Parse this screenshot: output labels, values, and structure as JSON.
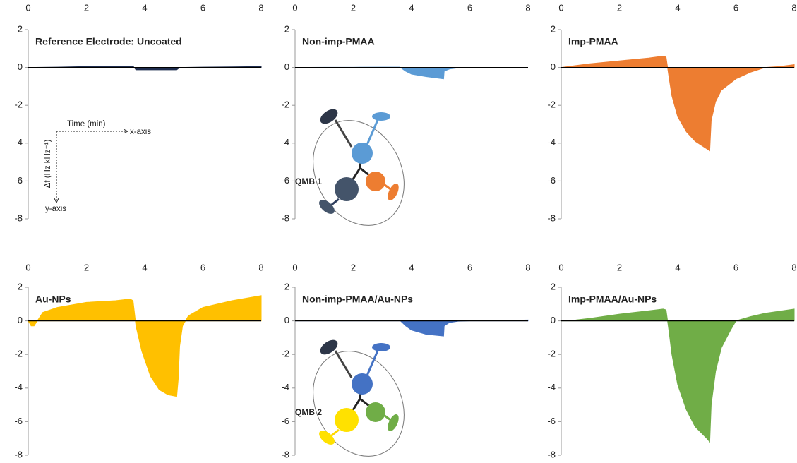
{
  "chart_data": [
    {
      "type": "area",
      "title": "Reference Electrode: Uncoated",
      "color": "#1f2d4e",
      "x": [
        0,
        1,
        2,
        3,
        3.6,
        3.7,
        5.1,
        5.2,
        6,
        7,
        8
      ],
      "values": [
        0,
        0.02,
        0.05,
        0.07,
        0.07,
        -0.12,
        -0.12,
        0,
        0.02,
        0.03,
        0.05
      ],
      "xlim": [
        0,
        8
      ],
      "xticks": [
        0,
        2,
        4,
        6,
        8
      ],
      "ylim": [
        -8,
        2
      ],
      "yticks": [
        2,
        0,
        -2,
        -4,
        -6,
        -8
      ],
      "annotations": [
        "Time (min)",
        "x-axis",
        "Δf (Hz kHz⁻¹)",
        "y-axis"
      ]
    },
    {
      "type": "area",
      "title": "Non-imp-PMAA",
      "color": "#5b9bd5",
      "x": [
        0,
        1,
        2,
        3,
        3.6,
        3.8,
        4,
        4.5,
        5.1,
        5.12,
        5.3,
        5.6,
        6,
        7,
        8
      ],
      "values": [
        0,
        0.01,
        0.01,
        0.02,
        0.02,
        -0.2,
        -0.35,
        -0.48,
        -0.6,
        -0.2,
        -0.08,
        -0.02,
        0,
        0,
        0
      ],
      "xlim": [
        0,
        8
      ],
      "xticks": [
        0,
        2,
        4,
        6,
        8
      ],
      "ylim": [
        -8,
        2
      ],
      "yticks": [
        2,
        0,
        -2,
        -4,
        -6,
        -8
      ],
      "annotations": [
        "QMB 1"
      ]
    },
    {
      "type": "area",
      "title": "Imp-PMAA",
      "color": "#ed7d31",
      "x": [
        0,
        0.5,
        1,
        2,
        3,
        3.5,
        3.6,
        3.7,
        3.8,
        4,
        4.3,
        4.6,
        5,
        5.1,
        5.15,
        5.3,
        5.5,
        6,
        6.5,
        7,
        7.5,
        8
      ],
      "values": [
        0,
        0.1,
        0.2,
        0.35,
        0.5,
        0.6,
        0.55,
        -0.5,
        -1.5,
        -2.6,
        -3.4,
        -3.9,
        -4.3,
        -4.4,
        -2.8,
        -1.8,
        -1.2,
        -0.6,
        -0.25,
        0,
        0.05,
        0.15
      ],
      "xlim": [
        0,
        8
      ],
      "xticks": [
        0,
        2,
        4,
        6,
        8
      ],
      "ylim": [
        -8,
        2
      ],
      "yticks": [
        2,
        0,
        -2,
        -4,
        -6,
        -8
      ]
    },
    {
      "type": "area",
      "title": "Au-NPs",
      "color": "#ffc000",
      "x": [
        0,
        0.1,
        0.2,
        0.5,
        1,
        2,
        3,
        3.5,
        3.6,
        3.7,
        3.9,
        4.2,
        4.5,
        4.8,
        5.1,
        5.15,
        5.2,
        5.3,
        5.5,
        6,
        7,
        8
      ],
      "values": [
        0,
        -0.3,
        -0.3,
        0.5,
        0.8,
        1.1,
        1.2,
        1.3,
        1.2,
        -0.3,
        -1.8,
        -3.3,
        -4.1,
        -4.4,
        -4.5,
        -3.5,
        -1.5,
        -0.3,
        0.3,
        0.8,
        1.2,
        1.5
      ],
      "xlim": [
        0,
        8
      ],
      "xticks": [
        0,
        2,
        4,
        6,
        8
      ],
      "ylim": [
        -8,
        2
      ],
      "yticks": [
        2,
        0,
        -2,
        -4,
        -6,
        -8
      ]
    },
    {
      "type": "area",
      "title": "Non-imp-PMAA/Au-NPs",
      "color": "#4472c4",
      "x": [
        0,
        2,
        3.6,
        3.8,
        4,
        4.5,
        5.1,
        5.12,
        5.3,
        5.6,
        6,
        7,
        8
      ],
      "values": [
        0,
        0.02,
        0.03,
        -0.3,
        -0.55,
        -0.8,
        -0.9,
        -0.3,
        -0.1,
        -0.02,
        0,
        0.02,
        0.05
      ],
      "xlim": [
        0,
        8
      ],
      "xticks": [
        0,
        2,
        4,
        6,
        8
      ],
      "ylim": [
        -8,
        2
      ],
      "yticks": [
        2,
        0,
        -2,
        -4,
        -6,
        -8
      ],
      "annotations": [
        "QMB 2"
      ]
    },
    {
      "type": "area",
      "title": "Imp-PMAA/Au-NPs",
      "color": "#70ad47",
      "x": [
        0,
        0.5,
        1,
        2,
        3,
        3.5,
        3.6,
        3.7,
        3.8,
        4,
        4.3,
        4.6,
        5,
        5.1,
        5.15,
        5.3,
        5.5,
        5.8,
        6,
        6.5,
        7,
        8
      ],
      "values": [
        0,
        0.05,
        0.15,
        0.4,
        0.6,
        0.7,
        0.65,
        -0.6,
        -2,
        -3.8,
        -5.3,
        -6.3,
        -7,
        -7.2,
        -5,
        -3,
        -1.6,
        -0.6,
        0,
        0.25,
        0.45,
        0.7
      ],
      "xlim": [
        0,
        8
      ],
      "xticks": [
        0,
        2,
        4,
        6,
        8
      ],
      "ylim": [
        -8,
        2
      ],
      "yticks": [
        2,
        0,
        -2,
        -4,
        -6,
        -8
      ]
    }
  ]
}
